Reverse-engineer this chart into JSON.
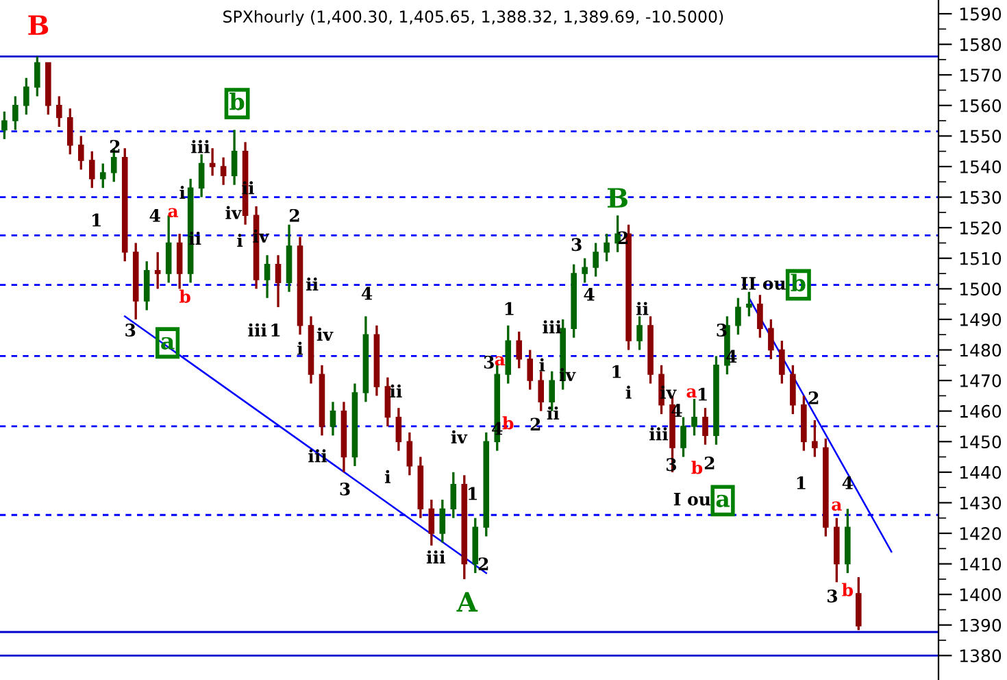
{
  "chart_data": {
    "type": "candlestick",
    "title": "SPXhourly (1,400.30, 1,405.65, 1,388.32, 1,389.69, -10.5000)",
    "categories": [
      null,
      null,
      null,
      null,
      null,
      null,
      null,
      null,
      null,
      null,
      null,
      null,
      null,
      null,
      null,
      null,
      null,
      null,
      null,
      null,
      null,
      null,
      null,
      null,
      null,
      null,
      null,
      null,
      null,
      null,
      null,
      null,
      null,
      null,
      null,
      null,
      null,
      null,
      null,
      null,
      null,
      null,
      null,
      null,
      null,
      null,
      null,
      null,
      null,
      null,
      null,
      null,
      null,
      null,
      null,
      null,
      null,
      null,
      null,
      null,
      null,
      null,
      null,
      null,
      null,
      null,
      null,
      null,
      null,
      null,
      null,
      null,
      null,
      null,
      null,
      null,
      null,
      null,
      null,
      null,
      null,
      null
    ],
    "series": [
      {
        "ohlc": [
          [
            1552,
            1558,
            1549,
            1555
          ],
          [
            1555,
            1563,
            1552,
            1560
          ],
          [
            1560,
            1569,
            1557,
            1566
          ],
          [
            1566,
            1576,
            1563,
            1574
          ],
          [
            1574,
            1574,
            1557,
            1560
          ],
          [
            1560,
            1563,
            1553,
            1556
          ],
          [
            1556,
            1559,
            1544,
            1547
          ],
          [
            1547,
            1550,
            1539,
            1542
          ],
          [
            1542,
            1545,
            1533,
            1536
          ],
          [
            1536,
            1541,
            1533,
            1538
          ],
          [
            1538,
            1546,
            1535,
            1543
          ],
          [
            1543,
            1546,
            1509,
            1512
          ],
          [
            1512,
            1515,
            1490,
            1496
          ],
          [
            1496,
            1509,
            1493,
            1506
          ],
          [
            1506,
            1512,
            1500,
            1505
          ],
          [
            1505,
            1524,
            1502,
            1515
          ],
          [
            1515,
            1518,
            1500,
            1505
          ],
          [
            1505,
            1536,
            1502,
            1533
          ],
          [
            1533,
            1544,
            1530,
            1541
          ],
          [
            1541,
            1546,
            1537,
            1540
          ],
          [
            1540,
            1543,
            1534,
            1537
          ],
          [
            1537,
            1552,
            1534,
            1545
          ],
          [
            1545,
            1548,
            1521,
            1524
          ],
          [
            1524,
            1527,
            1500,
            1503
          ],
          [
            1503,
            1511,
            1497,
            1508
          ],
          [
            1508,
            1511,
            1494,
            1502
          ],
          [
            1502,
            1521,
            1499,
            1514
          ],
          [
            1514,
            1517,
            1485,
            1488
          ],
          [
            1488,
            1491,
            1469,
            1472
          ],
          [
            1472,
            1475,
            1452,
            1455
          ],
          [
            1455,
            1463,
            1452,
            1460
          ],
          [
            1460,
            1463,
            1440,
            1445
          ],
          [
            1445,
            1469,
            1442,
            1466
          ],
          [
            1466,
            1491,
            1463,
            1485
          ],
          [
            1485,
            1488,
            1465,
            1468
          ],
          [
            1468,
            1471,
            1455,
            1458
          ],
          [
            1458,
            1461,
            1447,
            1450
          ],
          [
            1450,
            1453,
            1439,
            1442
          ],
          [
            1442,
            1445,
            1425,
            1428
          ],
          [
            1428,
            1431,
            1416,
            1420
          ],
          [
            1420,
            1431,
            1417,
            1428
          ],
          [
            1428,
            1440,
            1425,
            1436
          ],
          [
            1436,
            1439,
            1405,
            1410
          ],
          [
            1410,
            1425,
            1407,
            1422
          ],
          [
            1422,
            1453,
            1419,
            1450
          ],
          [
            1450,
            1476,
            1447,
            1472
          ],
          [
            1472,
            1488,
            1469,
            1483
          ],
          [
            1483,
            1486,
            1474,
            1477
          ],
          [
            1477,
            1480,
            1467,
            1470
          ],
          [
            1470,
            1473,
            1460,
            1463
          ],
          [
            1463,
            1473,
            1460,
            1470
          ],
          [
            1470,
            1490,
            1467,
            1487
          ],
          [
            1487,
            1508,
            1484,
            1505
          ],
          [
            1505,
            1510,
            1502,
            1507
          ],
          [
            1507,
            1515,
            1504,
            1512
          ],
          [
            1512,
            1518,
            1509,
            1515
          ],
          [
            1515,
            1524,
            1512,
            1518
          ],
          [
            1518,
            1521,
            1480,
            1483
          ],
          [
            1483,
            1491,
            1480,
            1488
          ],
          [
            1488,
            1491,
            1469,
            1472
          ],
          [
            1472,
            1475,
            1459,
            1462
          ],
          [
            1462,
            1465,
            1440,
            1448
          ],
          [
            1448,
            1458,
            1445,
            1455
          ],
          [
            1455,
            1464,
            1452,
            1458
          ],
          [
            1458,
            1461,
            1449,
            1452
          ],
          [
            1452,
            1478,
            1449,
            1475
          ],
          [
            1475,
            1491,
            1472,
            1488
          ],
          [
            1488,
            1497,
            1485,
            1494
          ],
          [
            1494,
            1499,
            1491,
            1495
          ],
          [
            1495,
            1498,
            1484,
            1487
          ],
          [
            1487,
            1490,
            1477,
            1480
          ],
          [
            1480,
            1483,
            1469,
            1472
          ],
          [
            1472,
            1475,
            1459,
            1462
          ],
          [
            1462,
            1465,
            1447,
            1450
          ],
          [
            1450,
            1457,
            1445,
            1448
          ],
          [
            1448,
            1451,
            1419,
            1422
          ],
          [
            1422,
            1425,
            1404,
            1410
          ],
          [
            1410,
            1428,
            1407,
            1422
          ],
          [
            1400.3,
            1405.65,
            1388.32,
            1389.69
          ],
          null,
          null,
          null
        ],
        "colors": [
          "#006400",
          "#006400",
          "#006400",
          "#006400",
          "#8b0000",
          "#8b0000",
          "#8b0000",
          "#8b0000",
          "#8b0000",
          "#006400",
          "#006400",
          "#8b0000",
          "#8b0000",
          "#006400",
          "#8b0000",
          "#006400",
          "#8b0000",
          "#006400",
          "#006400",
          "#8b0000",
          "#8b0000",
          "#006400",
          "#8b0000",
          "#8b0000",
          "#006400",
          "#8b0000",
          "#006400",
          "#8b0000",
          "#8b0000",
          "#8b0000",
          "#006400",
          "#8b0000",
          "#006400",
          "#006400",
          "#8b0000",
          "#8b0000",
          "#8b0000",
          "#8b0000",
          "#8b0000",
          "#8b0000",
          "#006400",
          "#006400",
          "#8b0000",
          "#006400",
          "#006400",
          "#006400",
          "#006400",
          "#8b0000",
          "#8b0000",
          "#8b0000",
          "#006400",
          "#006400",
          "#006400",
          "#006400",
          "#006400",
          "#006400",
          "#006400",
          "#8b0000",
          "#006400",
          "#8b0000",
          "#8b0000",
          "#8b0000",
          "#006400",
          "#006400",
          "#8b0000",
          "#006400",
          "#006400",
          "#006400",
          "#006400",
          "#8b0000",
          "#8b0000",
          "#8b0000",
          "#8b0000",
          "#8b0000",
          "#8b0000",
          "#8b0000",
          "#8b0000",
          "#006400",
          "#8b0000",
          null,
          null,
          null
        ]
      },
      {
        "type": "line",
        "color": "#0000ff",
        "values": [
          null,
          null,
          null,
          null,
          null,
          null,
          null,
          null,
          null,
          null,
          null,
          1491,
          null,
          null,
          null,
          null,
          null,
          null,
          null,
          null,
          null,
          null,
          null,
          null,
          null,
          null,
          null,
          null,
          null,
          null,
          null,
          null,
          null,
          null,
          null,
          null,
          null,
          null,
          null,
          null,
          null,
          null,
          null,
          null,
          1407,
          null,
          null,
          null,
          null,
          null,
          null,
          null,
          null,
          null,
          null,
          null,
          null,
          null,
          null,
          null,
          null,
          null,
          null,
          null,
          null,
          null,
          null,
          null,
          null,
          null,
          null,
          null,
          null,
          null,
          null,
          null,
          null,
          null,
          null,
          null,
          null,
          null
        ]
      },
      {
        "type": "line",
        "color": "#0000ff",
        "values": [
          null,
          null,
          null,
          null,
          null,
          null,
          null,
          null,
          null,
          null,
          null,
          null,
          null,
          null,
          null,
          null,
          null,
          null,
          null,
          null,
          null,
          null,
          null,
          null,
          null,
          null,
          null,
          null,
          null,
          null,
          null,
          null,
          null,
          null,
          null,
          null,
          null,
          null,
          null,
          null,
          null,
          null,
          null,
          null,
          null,
          null,
          null,
          null,
          null,
          null,
          null,
          null,
          null,
          null,
          null,
          null,
          null,
          null,
          null,
          null,
          null,
          null,
          null,
          null,
          null,
          null,
          null,
          null,
          1497,
          null,
          null,
          null,
          null,
          null,
          null,
          null,
          null,
          null,
          null,
          null,
          null,
          1414
        ]
      }
    ],
    "ylim": [
      1372,
      1594.5
    ],
    "yticks": [
      1380,
      1390,
      1400,
      1410,
      1420,
      1430,
      1440,
      1450,
      1460,
      1470,
      1480,
      1490,
      1500,
      1510,
      1520,
      1530,
      1540,
      1550,
      1560,
      1570,
      1580,
      1590
    ],
    "tick_labels": "y",
    "ref_lines": [
      {
        "axis": "y",
        "value": 1576,
        "color": "#0000cc",
        "line_style": "solid"
      },
      {
        "axis": "y",
        "value": 1551.5,
        "color": "#0000ff",
        "line_style": "dashed"
      },
      {
        "axis": "y",
        "value": 1530,
        "color": "#0000ff",
        "line_style": "dashed"
      },
      {
        "axis": "y",
        "value": 1517.5,
        "color": "#0000ff",
        "line_style": "dashed"
      },
      {
        "axis": "y",
        "value": 1501.3,
        "color": "#0000ff",
        "line_style": "dashed"
      },
      {
        "axis": "y",
        "value": 1478,
        "color": "#0000ff",
        "line_style": "dashed"
      },
      {
        "axis": "y",
        "value": 1455,
        "color": "#0000ff",
        "line_style": "dashed"
      },
      {
        "axis": "y",
        "value": 1426,
        "color": "#0000ff",
        "line_style": "dashed"
      },
      {
        "axis": "y",
        "value": 1387.7,
        "color": "#0000cc",
        "line_style": "solid"
      },
      {
        "axis": "y",
        "value": 1380,
        "color": "#0000cc",
        "line_style": "solid"
      }
    ],
    "annotations": [
      "B",
      "b",
      "2",
      "1",
      "iii",
      "i",
      "ii",
      "iv",
      "ii",
      "4",
      "a",
      "b",
      "i",
      "iv",
      "2",
      "3",
      "a",
      "iii",
      "1",
      "ii",
      "i",
      "iv",
      "4",
      "ii",
      "iii",
      "3",
      "i",
      "iv",
      "1",
      "iii",
      "2",
      "A",
      "1",
      "3",
      "a",
      "iii",
      "i",
      "iv",
      "4",
      "b",
      "2",
      "ii",
      "B",
      "3",
      "2",
      "4",
      "ii",
      "1",
      "i",
      "iv",
      "iii",
      "4",
      "3",
      "a",
      "1",
      "b",
      "2",
      "3",
      "4",
      "I ou",
      "a",
      "II ou",
      "b",
      "2",
      "1",
      "4",
      "a",
      "3",
      "b"
    ]
  }
}
